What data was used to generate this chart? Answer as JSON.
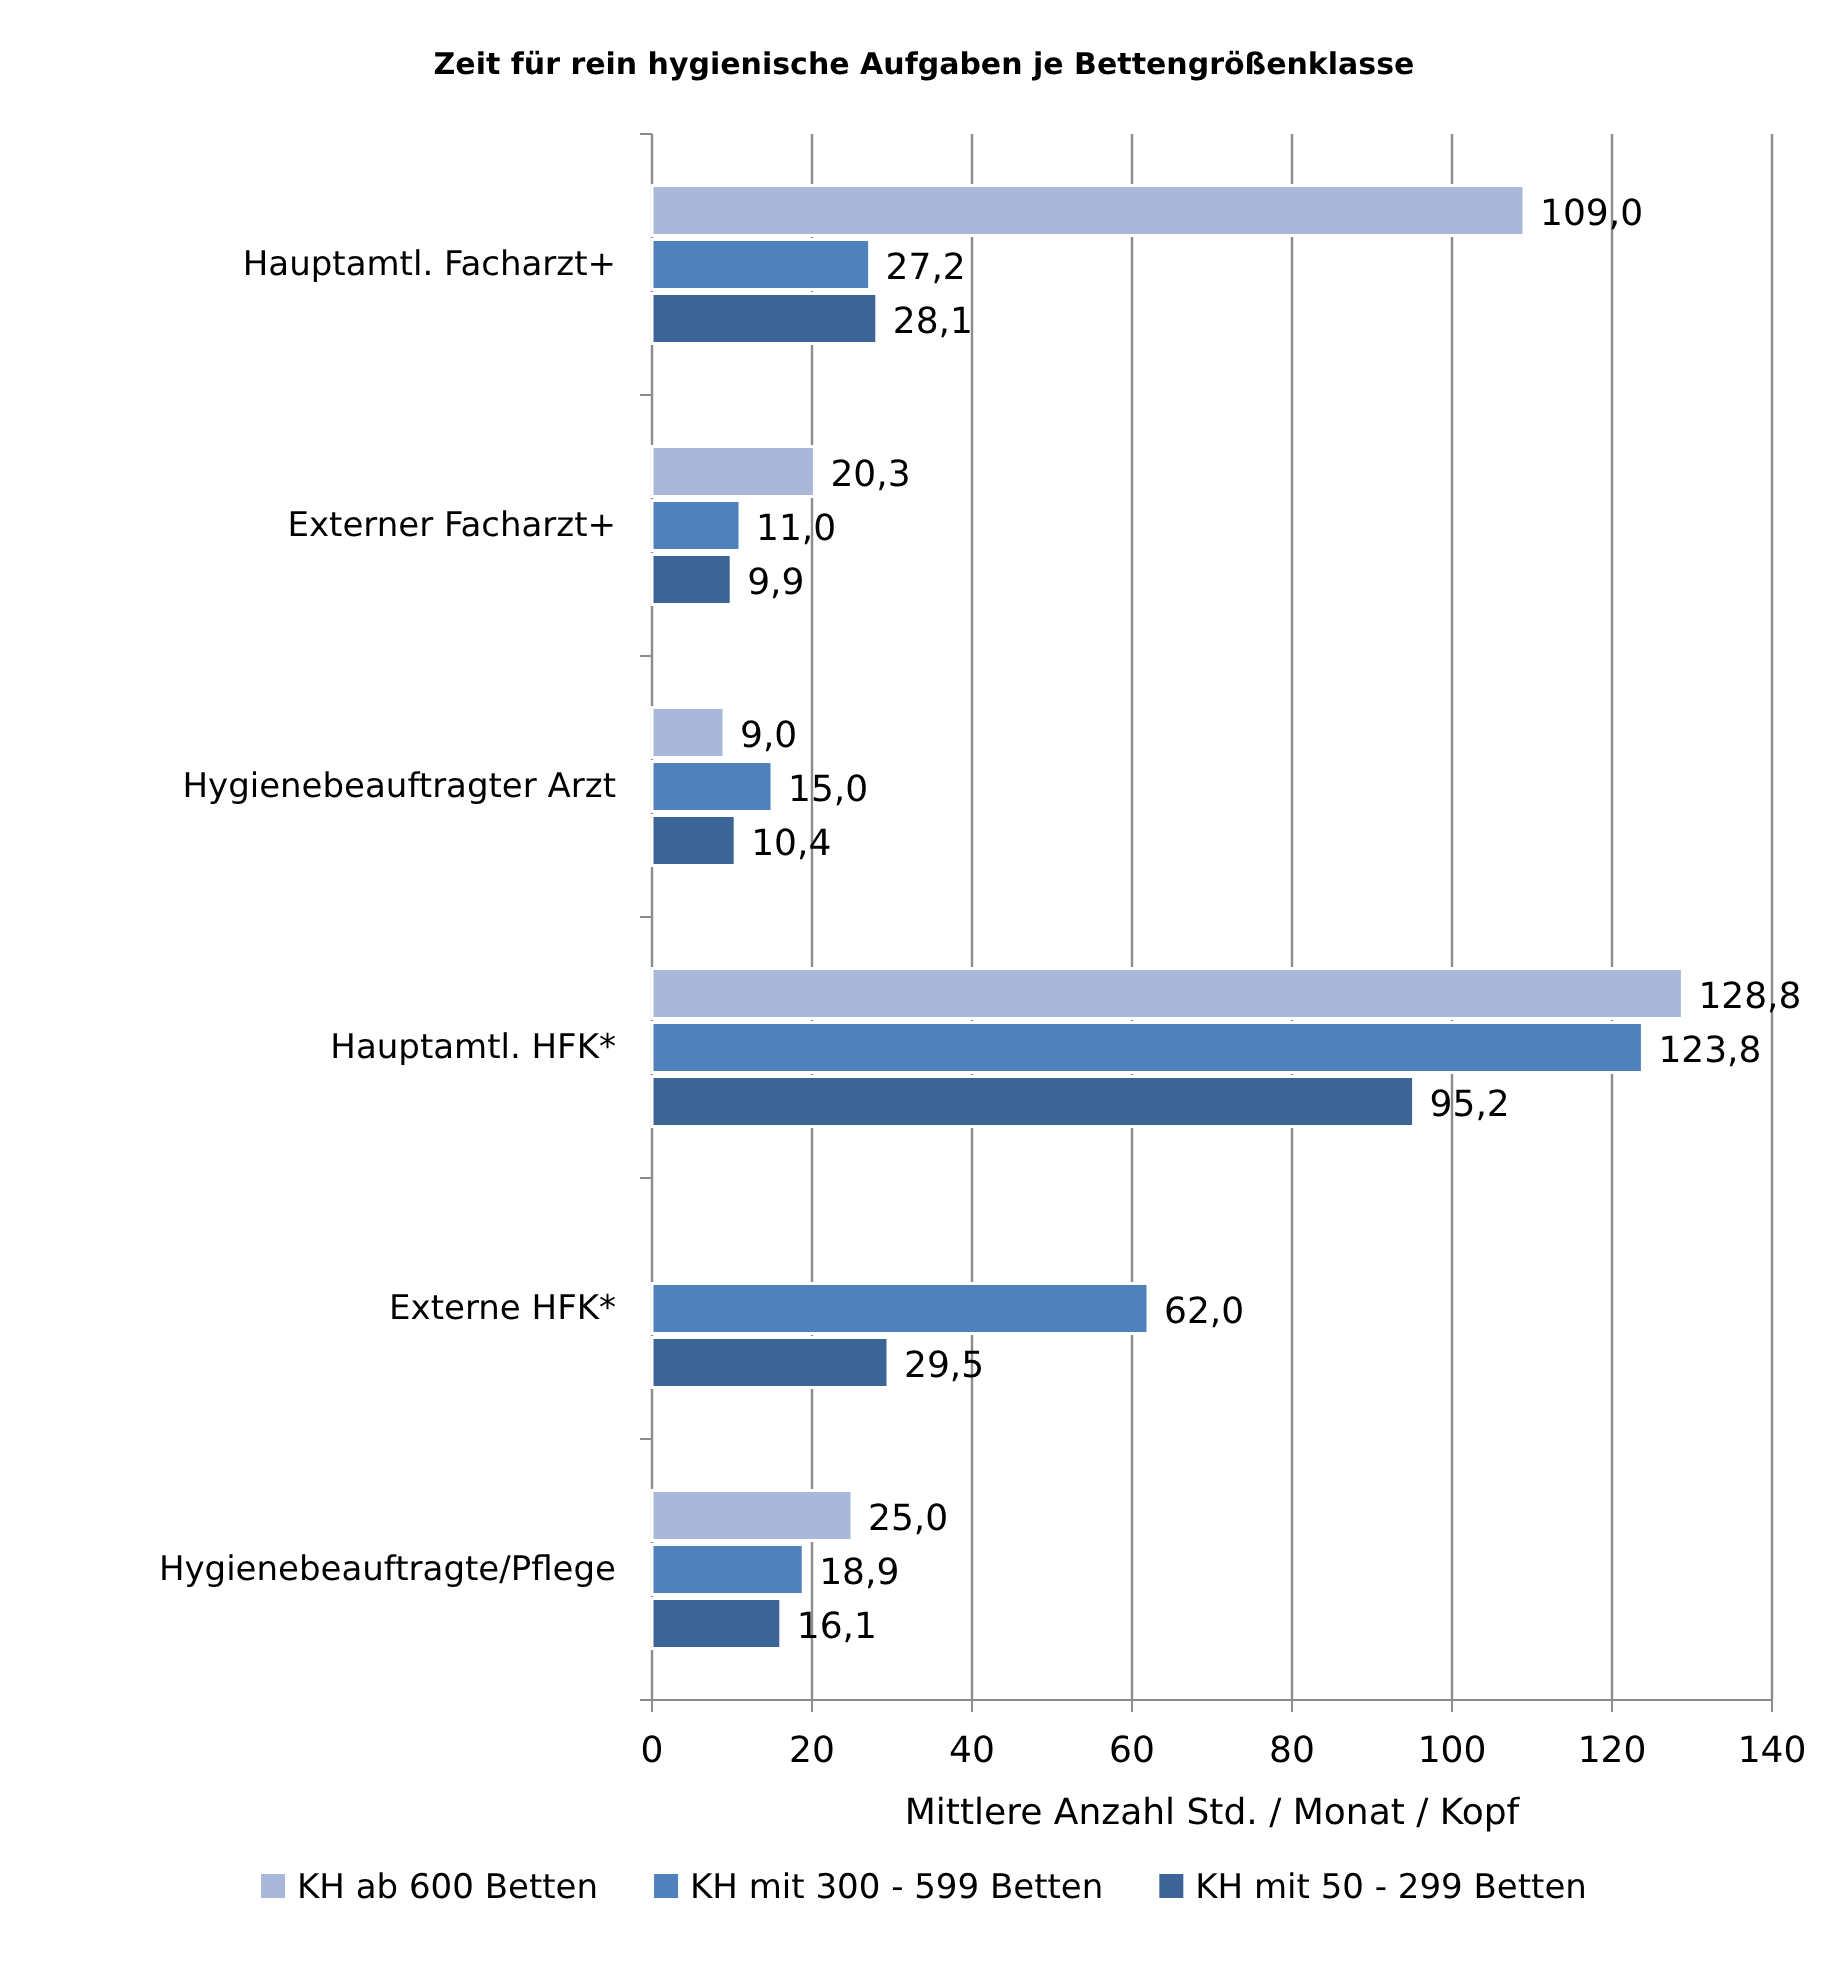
{
  "chart_data": {
    "type": "bar",
    "orientation": "horizontal",
    "title": "Zeit für rein hygienische  Aufgaben je Bettengrößenklasse",
    "xlabel": "Mittlere Anzahl Std. / Monat / Kopf",
    "categories": [
      "Hauptamtl.  Facharzt+",
      "Externer Facharzt+",
      "Hygienebeauftragter Arzt",
      "Hauptamtl.  HFK*",
      "Externe HFK*",
      "Hygienebeauftragte/Pflege"
    ],
    "series": [
      {
        "name": "KH ab 600 Betten",
        "color": "#a9b8d9",
        "values": [
          109.0,
          20.3,
          9.0,
          128.8,
          null,
          25.0
        ],
        "value_labels": [
          "109,0",
          "20,3",
          "9,0",
          "128,8",
          null,
          "25,0"
        ]
      },
      {
        "name": "KH mit 300 - 599 Betten",
        "color": "#4f81bd",
        "values": [
          27.2,
          11.0,
          15.0,
          123.8,
          62.0,
          18.9
        ],
        "value_labels": [
          "27,2",
          "11,0",
          "15,0",
          "123,8",
          "62,0",
          "18,9"
        ]
      },
      {
        "name": "KH mit 50 - 299 Betten",
        "color": "#3c6496",
        "values": [
          28.1,
          9.9,
          10.4,
          95.2,
          29.5,
          16.1
        ],
        "value_labels": [
          "28,1",
          "9,9",
          "10,4",
          "95,2",
          "29,5",
          "16,1"
        ]
      }
    ],
    "xlim": [
      0,
      140
    ],
    "xticks": [
      0,
      20,
      40,
      60,
      80,
      100,
      120,
      140
    ],
    "grid": "x",
    "legend": "bottom"
  }
}
